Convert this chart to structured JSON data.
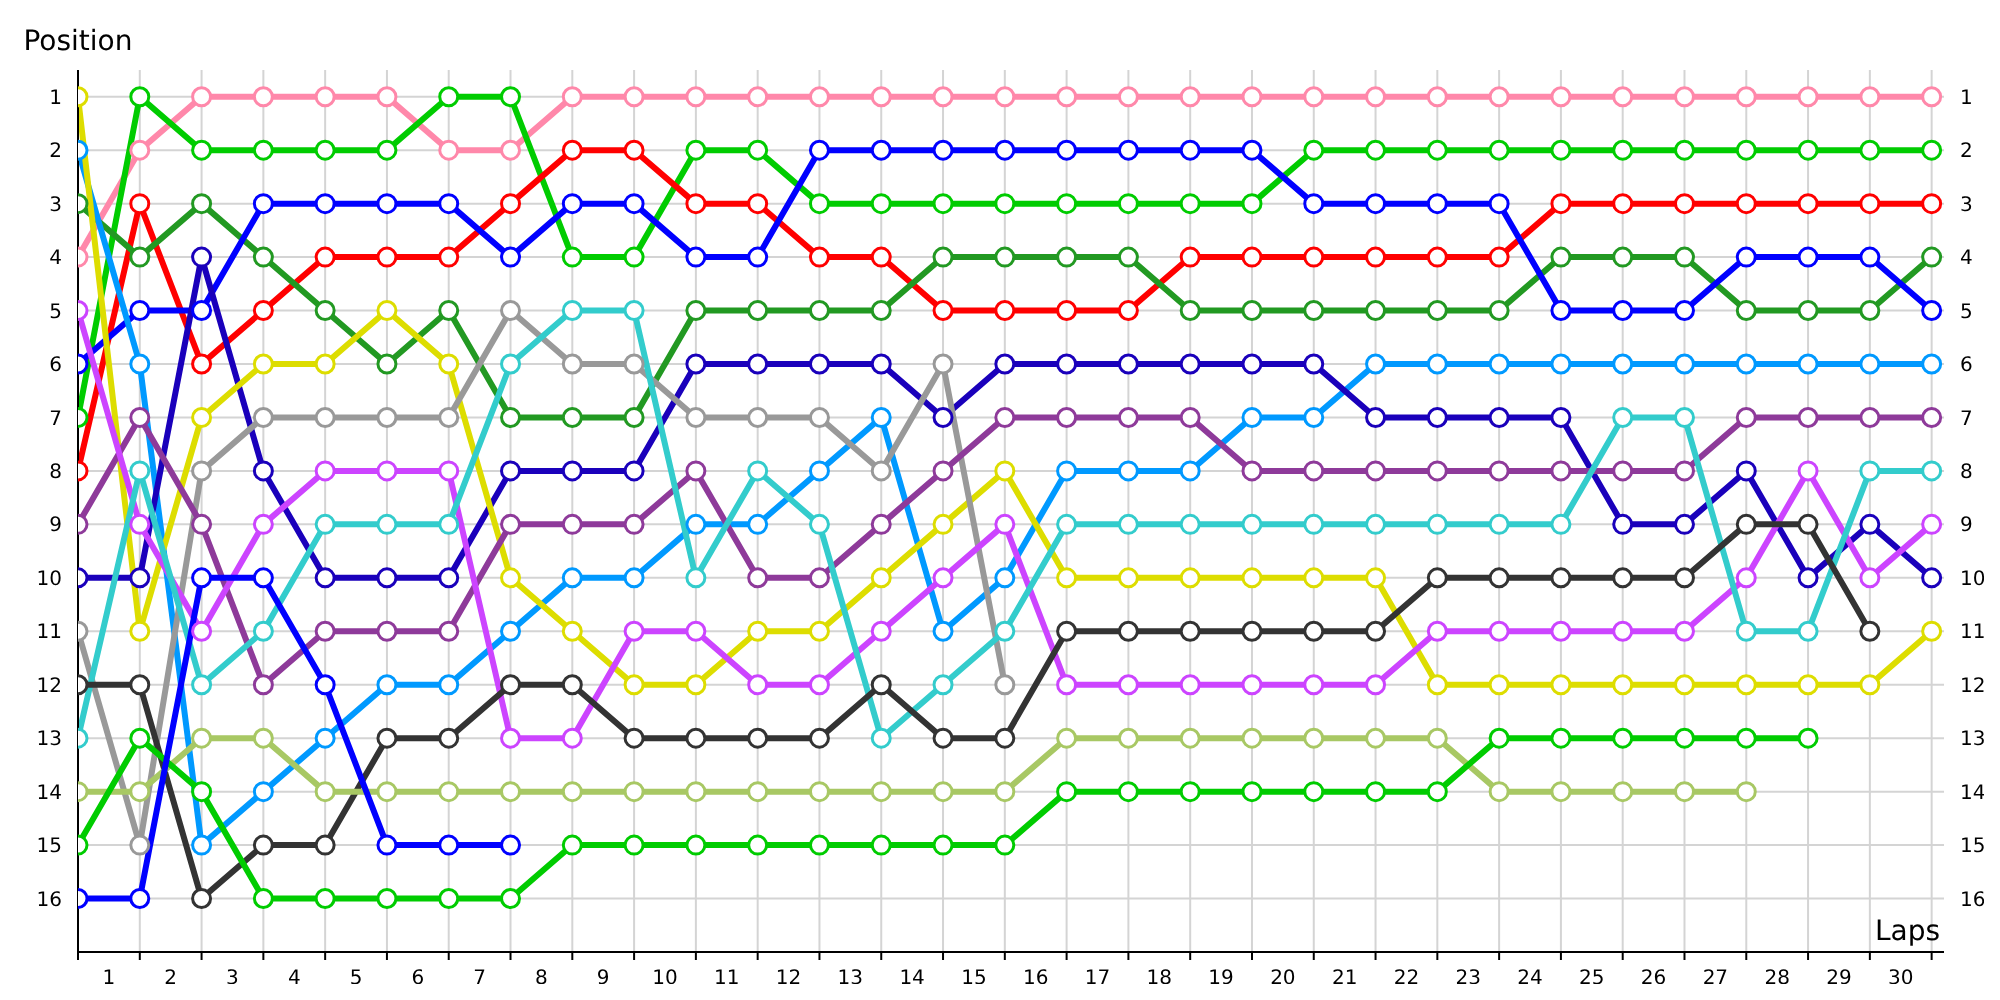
{
  "chart_data": {
    "type": "line",
    "xlabel": "Laps",
    "ylabel": "Position",
    "x": [
      0,
      1,
      2,
      3,
      4,
      5,
      6,
      7,
      8,
      9,
      10,
      11,
      12,
      13,
      14,
      15,
      16,
      17,
      18,
      19,
      20,
      21,
      22,
      23,
      24,
      25,
      26,
      27,
      28,
      29,
      30
    ],
    "xlim": [
      0,
      30.2
    ],
    "xticks": [
      {
        "value": 0,
        "label": null
      },
      {
        "value": 0.5,
        "label": "1"
      },
      {
        "value": 1,
        "label": null
      },
      {
        "value": 1.5,
        "label": "2"
      },
      {
        "value": 2,
        "label": null
      },
      {
        "value": 2.5,
        "label": "3"
      },
      {
        "value": 3,
        "label": null
      },
      {
        "value": 3.5,
        "label": "4"
      },
      {
        "value": 4,
        "label": null
      },
      {
        "value": 4.5,
        "label": "5"
      },
      {
        "value": 5,
        "label": null
      },
      {
        "value": 5.5,
        "label": "6"
      },
      {
        "value": 6,
        "label": null
      },
      {
        "value": 6.5,
        "label": "7"
      },
      {
        "value": 7,
        "label": null
      },
      {
        "value": 7.5,
        "label": "8"
      },
      {
        "value": 8,
        "label": null
      },
      {
        "value": 8.5,
        "label": "9"
      },
      {
        "value": 9,
        "label": null
      },
      {
        "value": 9.5,
        "label": "10"
      },
      {
        "value": 10,
        "label": null
      },
      {
        "value": 10.5,
        "label": "11"
      },
      {
        "value": 11,
        "label": null
      },
      {
        "value": 11.5,
        "label": "12"
      },
      {
        "value": 12,
        "label": null
      },
      {
        "value": 12.5,
        "label": "13"
      },
      {
        "value": 13,
        "label": null
      },
      {
        "value": 13.5,
        "label": "14"
      },
      {
        "value": 14,
        "label": null
      },
      {
        "value": 14.5,
        "label": "15"
      },
      {
        "value": 15,
        "label": null
      },
      {
        "value": 15.5,
        "label": "16"
      },
      {
        "value": 16,
        "label": null
      },
      {
        "value": 16.5,
        "label": "17"
      },
      {
        "value": 17,
        "label": null
      },
      {
        "value": 17.5,
        "label": "18"
      },
      {
        "value": 18,
        "label": null
      },
      {
        "value": 18.5,
        "label": "19"
      },
      {
        "value": 19,
        "label": null
      },
      {
        "value": 19.5,
        "label": "20"
      },
      {
        "value": 20,
        "label": null
      },
      {
        "value": 20.5,
        "label": "21"
      },
      {
        "value": 21,
        "label": null
      },
      {
        "value": 21.5,
        "label": "22"
      },
      {
        "value": 22,
        "label": null
      },
      {
        "value": 22.5,
        "label": "23"
      },
      {
        "value": 23,
        "label": null
      },
      {
        "value": 23.5,
        "label": "24"
      },
      {
        "value": 24,
        "label": null
      },
      {
        "value": 24.5,
        "label": "25"
      },
      {
        "value": 25,
        "label": null
      },
      {
        "value": 25.5,
        "label": "26"
      },
      {
        "value": 26,
        "label": null
      },
      {
        "value": 26.5,
        "label": "27"
      },
      {
        "value": 27,
        "label": null
      },
      {
        "value": 27.5,
        "label": "28"
      },
      {
        "value": 28,
        "label": null
      },
      {
        "value": 28.5,
        "label": "29"
      },
      {
        "value": 29,
        "label": null
      },
      {
        "value": 29.5,
        "label": "30"
      },
      {
        "value": 30,
        "label": null
      }
    ],
    "ylim": [
      17,
      0.5
    ],
    "yticks": [
      1,
      2,
      3,
      4,
      5,
      6,
      7,
      8,
      9,
      10,
      11,
      12,
      13,
      14,
      15,
      16
    ],
    "y2lim": [
      17,
      0.5
    ],
    "y2ticks": [
      1,
      2,
      3,
      4,
      5,
      6,
      7,
      8,
      9,
      10,
      11,
      12,
      13,
      14,
      15,
      16
    ],
    "grid": true,
    "legend": false,
    "marker": "circle",
    "line_style": "solid",
    "series": [
      {
        "color": "#ff88aa",
        "values": [
          4,
          2,
          1,
          1,
          1,
          1,
          2,
          2,
          1,
          1,
          1,
          1,
          1,
          1,
          1,
          1,
          1,
          1,
          1,
          1,
          1,
          1,
          1,
          1,
          1,
          1,
          1,
          1,
          1,
          1,
          1
        ]
      },
      {
        "color": "#00cc00",
        "values": [
          7,
          1,
          2,
          2,
          2,
          2,
          1,
          1,
          4,
          4,
          2,
          2,
          3,
          3,
          3,
          3,
          3,
          3,
          3,
          3,
          2,
          2,
          2,
          2,
          2,
          2,
          2,
          2,
          2,
          2,
          2
        ]
      },
      {
        "color": "#ff0000",
        "values": [
          8,
          3,
          6,
          5,
          4,
          4,
          4,
          3,
          2,
          2,
          3,
          3,
          4,
          4,
          5,
          5,
          5,
          5,
          4,
          4,
          4,
          4,
          4,
          4,
          3,
          3,
          3,
          3,
          3,
          3,
          3
        ]
      },
      {
        "color": "#229922",
        "values": [
          3,
          4,
          3,
          4,
          5,
          6,
          5,
          7,
          7,
          7,
          5,
          5,
          5,
          5,
          4,
          4,
          4,
          4,
          5,
          5,
          5,
          5,
          5,
          5,
          4,
          4,
          4,
          5,
          5,
          5,
          4
        ]
      },
      {
        "color": "#0000ff",
        "values": [
          6,
          5,
          5,
          3,
          3,
          3,
          3,
          4,
          3,
          3,
          4,
          4,
          2,
          2,
          2,
          2,
          2,
          2,
          2,
          2,
          3,
          3,
          3,
          3,
          5,
          5,
          5,
          4,
          4,
          4,
          5
        ]
      },
      {
        "color": "#0099ff",
        "values": [
          2,
          6,
          15,
          14,
          13,
          12,
          12,
          11,
          10,
          10,
          9,
          9,
          8,
          7,
          11,
          10,
          8,
          8,
          8,
          7,
          7,
          6,
          6,
          6,
          6,
          6,
          6,
          6,
          6,
          6,
          6
        ]
      },
      {
        "color": "#1a00bb",
        "values": [
          10,
          10,
          4,
          8,
          10,
          10,
          10,
          8,
          8,
          8,
          6,
          6,
          6,
          6,
          7,
          6,
          6,
          6,
          6,
          6,
          6,
          7,
          7,
          7,
          7,
          9,
          9,
          8,
          10,
          9,
          10
        ]
      },
      {
        "color": "#dddd00",
        "values": [
          1,
          11,
          7,
          6,
          6,
          5,
          6,
          10,
          11,
          12,
          12,
          11,
          11,
          10,
          9,
          8,
          10,
          10,
          10,
          10,
          10,
          10,
          12,
          12,
          12,
          12,
          12,
          12,
          12,
          12,
          11
        ]
      },
      {
        "color": "#999999",
        "values": [
          11,
          15,
          8,
          7,
          7,
          7,
          7,
          5,
          6,
          6,
          7,
          7,
          7,
          8,
          6,
          12,
          null,
          null,
          null,
          null,
          null,
          null,
          null,
          null,
          null,
          null,
          null,
          null,
          null,
          null,
          null
        ]
      },
      {
        "color": "#8e3a9a",
        "values": [
          9,
          7,
          9,
          12,
          11,
          11,
          11,
          9,
          9,
          9,
          8,
          10,
          10,
          9,
          8,
          7,
          7,
          7,
          7,
          8,
          8,
          8,
          8,
          8,
          8,
          8,
          8,
          7,
          7,
          7,
          7
        ]
      },
      {
        "color": "#cc44ff",
        "values": [
          5,
          9,
          11,
          9,
          8,
          8,
          8,
          13,
          13,
          11,
          11,
          12,
          12,
          11,
          10,
          9,
          12,
          12,
          12,
          12,
          12,
          12,
          11,
          11,
          11,
          11,
          11,
          10,
          8,
          10,
          9
        ]
      },
      {
        "color": "#33cccc",
        "values": [
          13,
          8,
          12,
          11,
          9,
          9,
          9,
          6,
          5,
          5,
          10,
          8,
          9,
          13,
          12,
          11,
          9,
          9,
          9,
          9,
          9,
          9,
          9,
          9,
          9,
          7,
          7,
          11,
          11,
          8,
          8
        ]
      },
      {
        "color": "#333333",
        "values": [
          12,
          12,
          16,
          15,
          15,
          13,
          13,
          12,
          12,
          13,
          13,
          13,
          13,
          12,
          13,
          13,
          11,
          11,
          11,
          11,
          11,
          11,
          10,
          10,
          10,
          10,
          10,
          9,
          9,
          11,
          null
        ]
      },
      {
        "color": "#a8c864",
        "values": [
          14,
          14,
          13,
          13,
          14,
          14,
          14,
          14,
          14,
          14,
          14,
          14,
          14,
          14,
          14,
          14,
          13,
          13,
          13,
          13,
          13,
          13,
          13,
          14,
          14,
          14,
          14,
          14,
          null,
          null,
          null
        ]
      },
      {
        "color": "#00cc00",
        "values": [
          15,
          13,
          14,
          16,
          16,
          16,
          16,
          16,
          15,
          15,
          15,
          15,
          15,
          15,
          15,
          15,
          14,
          14,
          14,
          14,
          14,
          14,
          14,
          13,
          13,
          13,
          13,
          13,
          13,
          null,
          null
        ]
      },
      {
        "color": "#0000ff",
        "values": [
          16,
          16,
          10,
          10,
          12,
          15,
          15,
          15,
          null,
          null,
          null,
          null,
          null,
          null,
          null,
          null,
          null,
          null,
          null,
          null,
          null,
          null,
          null,
          null,
          null,
          null,
          null,
          null,
          null,
          null,
          null
        ]
      }
    ]
  }
}
